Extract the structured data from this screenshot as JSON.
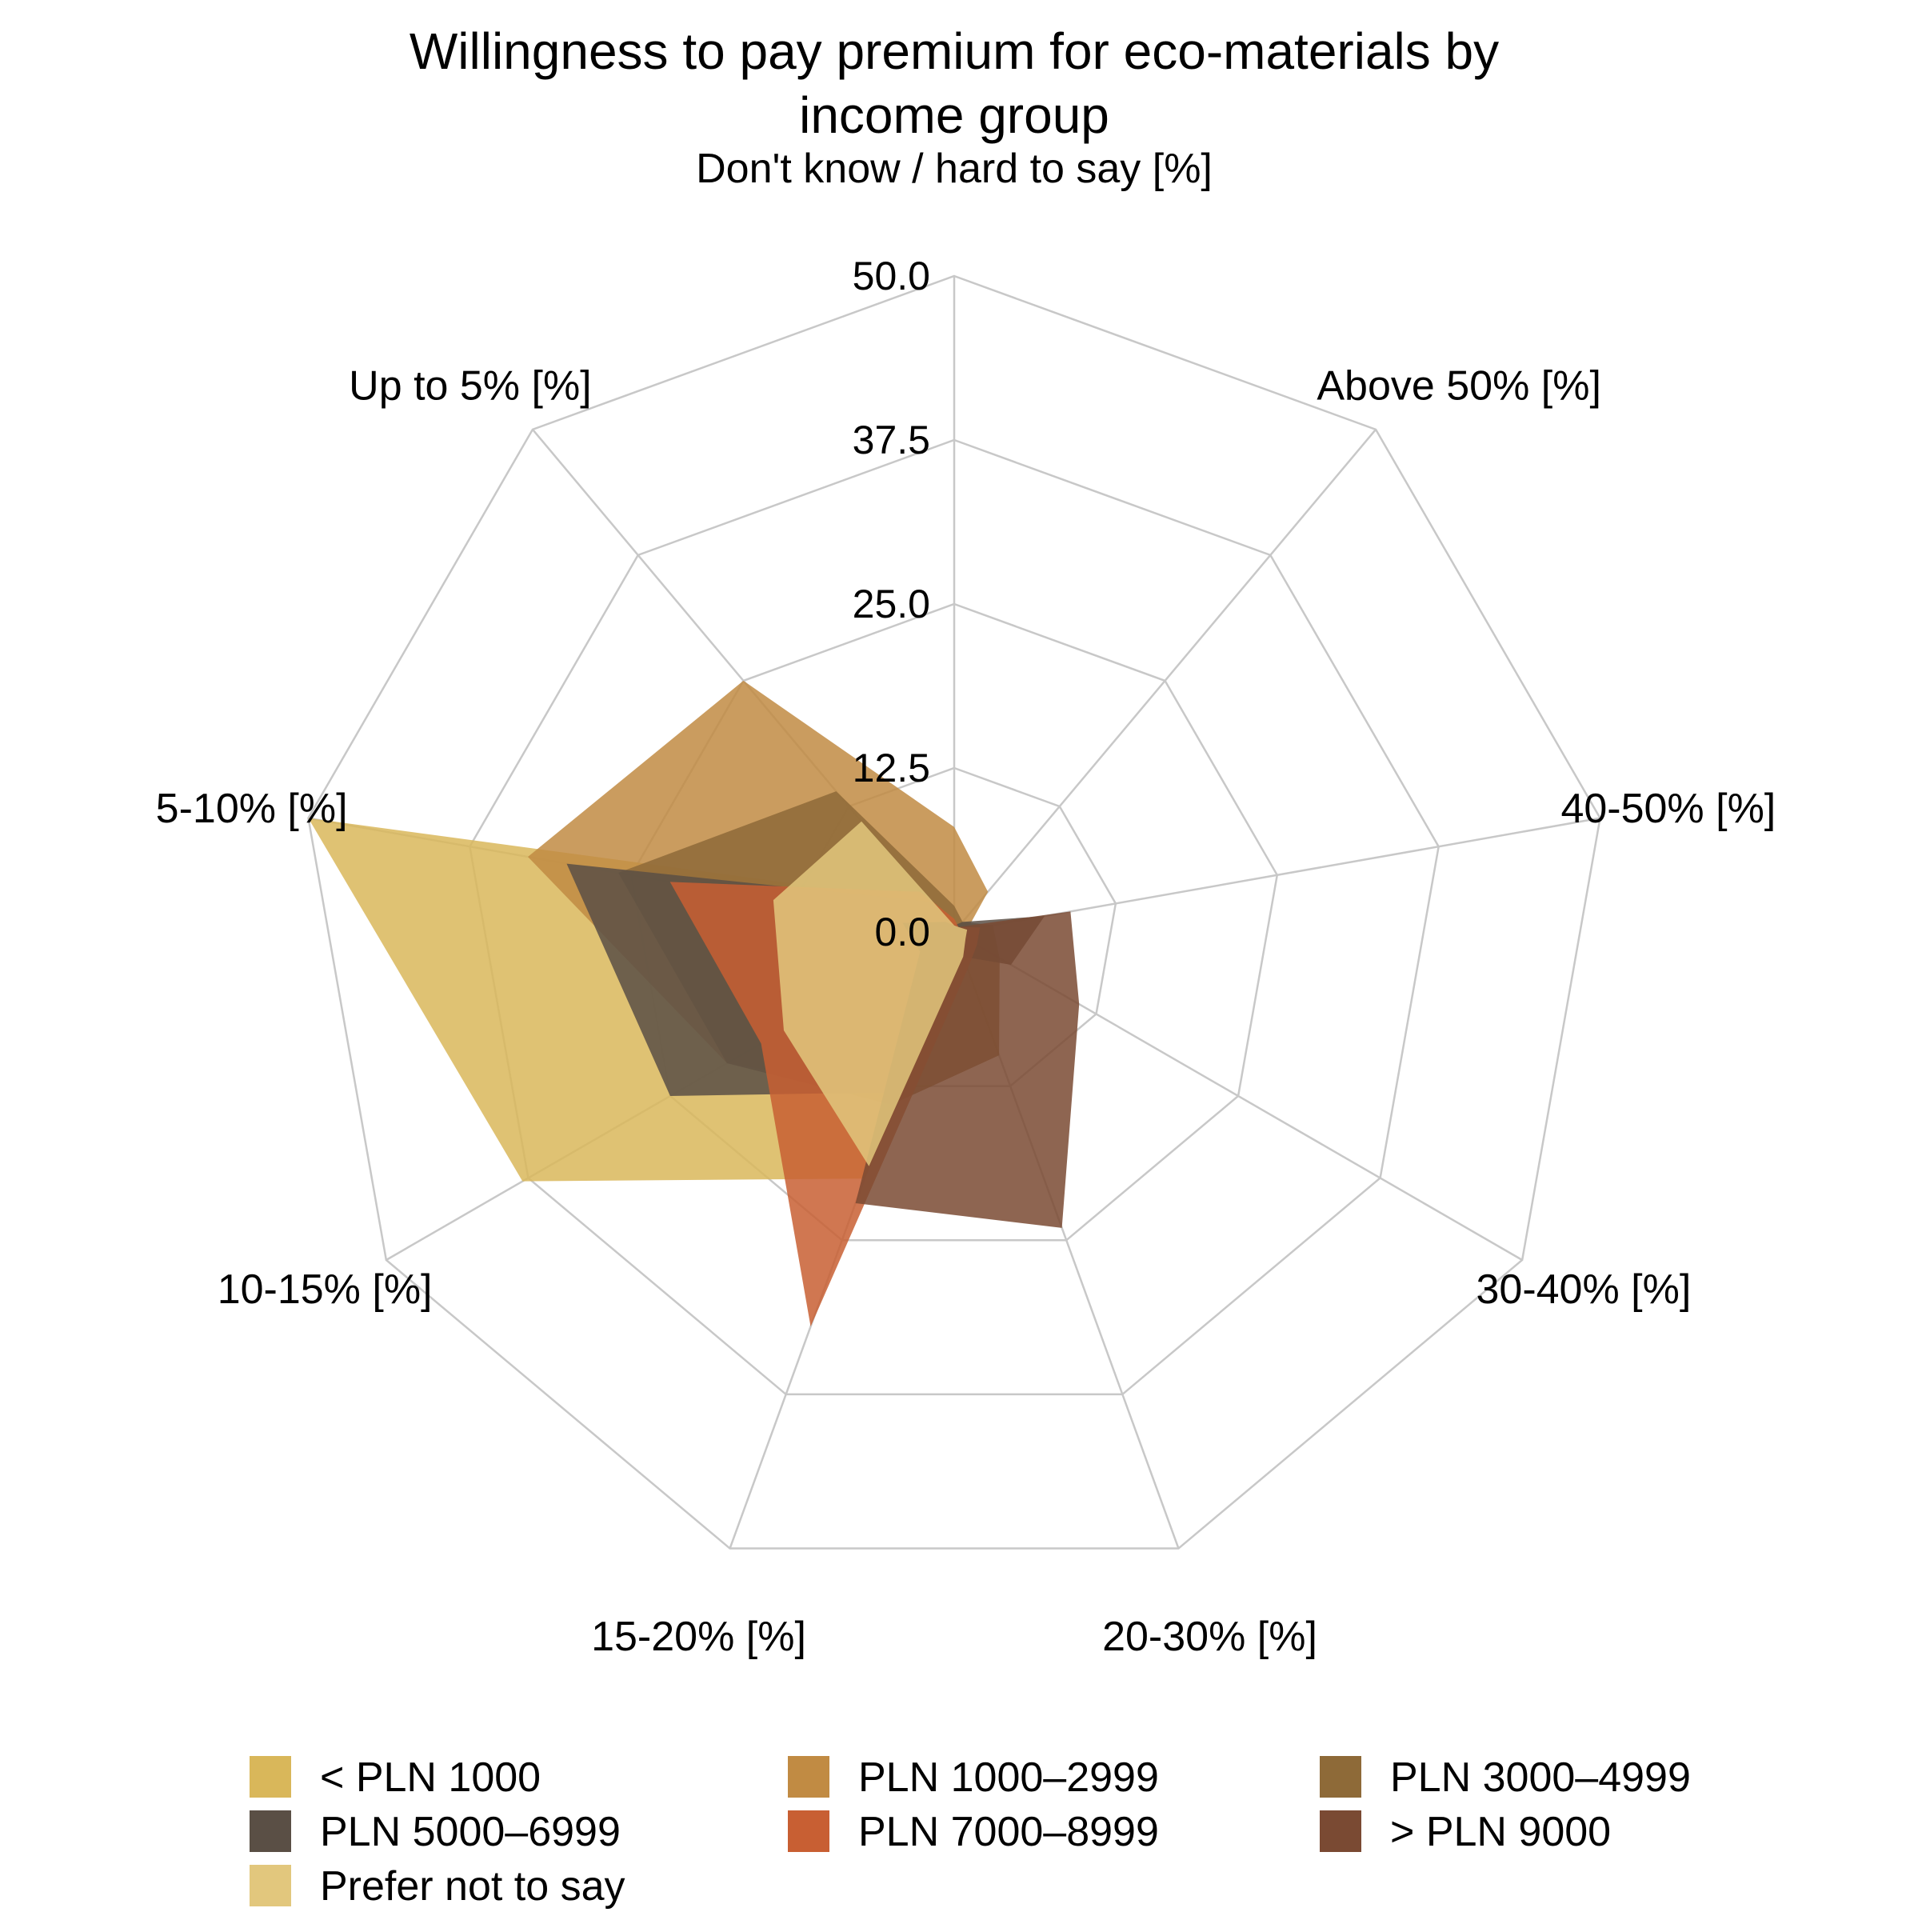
{
  "chart_data": {
    "type": "radar",
    "title": [
      "Willingness to pay premium for eco-materials by",
      "income group"
    ],
    "axes": [
      "Don't know / hard to say [%]",
      "Above 50% [%]",
      "40-50% [%]",
      "30-40% [%]",
      "20-30% [%]",
      "15-20% [%]",
      "10-15% [%]",
      "5-10% [%]",
      "Up to 5% [%]"
    ],
    "rlim": [
      0,
      50
    ],
    "ticks": [
      "0.0",
      "12.5",
      "25.0",
      "37.5",
      "50.0"
    ],
    "tick_values": [
      0,
      12.5,
      25,
      37.5,
      50
    ],
    "grid": true,
    "legend_position": "bottom",
    "series": [
      {
        "name": "< PLN 1000",
        "color": "#d9b75a",
        "values": [
          1,
          0.5,
          1,
          1,
          2,
          20,
          38,
          50,
          3
        ]
      },
      {
        "name": "PLN 1000–2999",
        "color": "#c18b43",
        "values": [
          8,
          4,
          1,
          1,
          2,
          13,
          20,
          33,
          25
        ]
      },
      {
        "name": "PLN 3000–4999",
        "color": "#8e6a38",
        "values": [
          2,
          1,
          3,
          4,
          10,
          14,
          20,
          26,
          14
        ]
      },
      {
        "name": "PLN 5000–6999",
        "color": "#5a4f45",
        "values": [
          0.5,
          1,
          7,
          5,
          2,
          13,
          25,
          30,
          3
        ]
      },
      {
        "name": "PLN 7000–8999",
        "color": "#c85f33",
        "values": [
          1,
          0.5,
          2,
          2,
          3,
          32,
          17,
          22,
          4
        ]
      },
      {
        "name": "> PLN 9000",
        "color": "#7a4a33",
        "values": [
          0.5,
          0.5,
          9,
          11,
          24,
          22,
          3,
          4,
          1
        ]
      },
      {
        "name": "Prefer not to say",
        "color": "#e2c77d",
        "values": [
          0.5,
          0.5,
          1,
          1,
          2,
          19,
          15,
          14,
          11
        ]
      }
    ]
  }
}
